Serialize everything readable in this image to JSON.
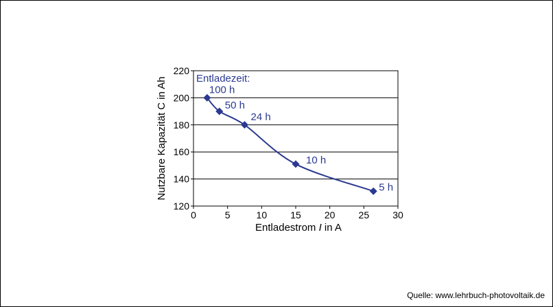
{
  "chart_data": {
    "type": "line",
    "xlabel": "Entladestrom  I in A",
    "ylabel": "Nutzbare  Kapazität  C in Ah",
    "xlim": [
      0,
      30
    ],
    "ylim": [
      120,
      220
    ],
    "x_ticks": [
      "0",
      "5",
      "10",
      "15",
      "20",
      "25",
      "30"
    ],
    "y_ticks": [
      "120",
      "140",
      "160",
      "180",
      "200",
      "220"
    ],
    "grid": "horizontal",
    "series": [
      {
        "points": [
          {
            "x": 2.0,
            "y": 200,
            "label": "100 h"
          },
          {
            "x": 3.8,
            "y": 190,
            "label": "50 h"
          },
          {
            "x": 7.5,
            "y": 180,
            "label": "24 h"
          },
          {
            "x": 15.0,
            "y": 151,
            "label": "10 h"
          },
          {
            "x": 26.4,
            "y": 131,
            "label": "5 h"
          }
        ]
      }
    ],
    "annotation_title": "Entladezeit:",
    "line_color": "#2b3990"
  },
  "source": "Quelle: www.lehrbuch-photovoltaik.de"
}
